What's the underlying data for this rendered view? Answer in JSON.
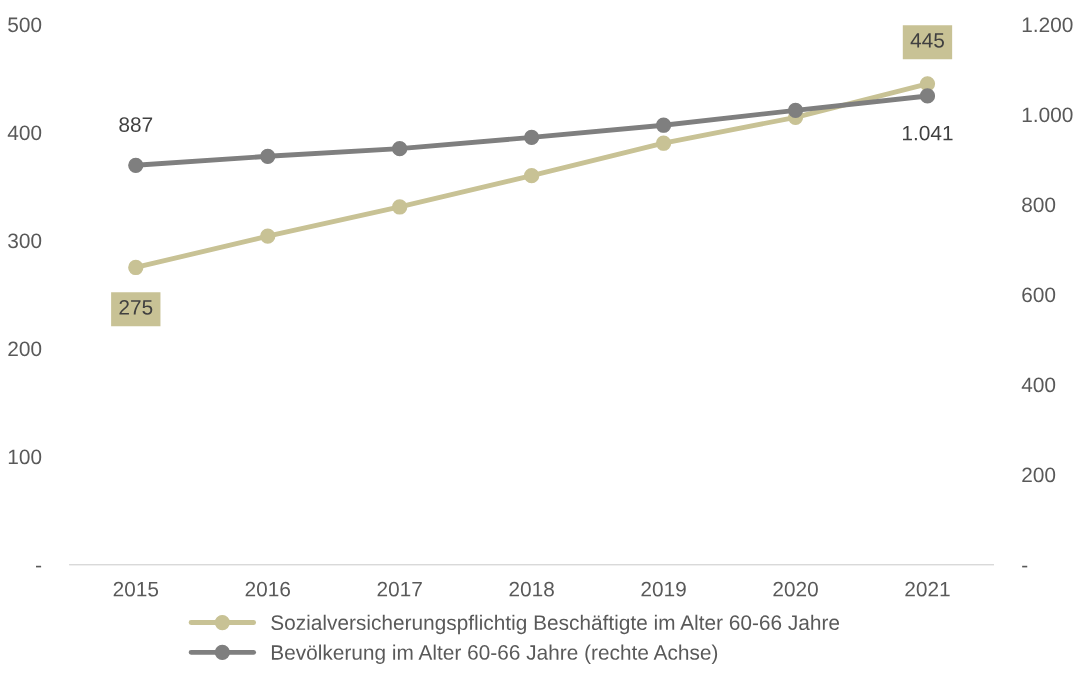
{
  "chart_data": {
    "type": "line",
    "categories": [
      "2015",
      "2016",
      "2017",
      "2018",
      "2019",
      "2020",
      "2021"
    ],
    "series": [
      {
        "name": "Sozialversicherungspflichtig Beschäftigte im Alter 60-66 Jahre",
        "color": "#c8c295",
        "values": [
          275,
          304,
          331,
          360,
          390,
          414,
          445
        ],
        "value_labels": [
          "275",
          null,
          null,
          null,
          null,
          null,
          "445"
        ]
      },
      {
        "name": "Bevölkerung im Alter 60-66 Jahre (rechte Achse)",
        "color": "#7f7f7f",
        "axis": "y2",
        "values": [
          887,
          907,
          924,
          949,
          976,
          1009,
          1041
        ],
        "value_labels": [
          "887",
          null,
          null,
          null,
          null,
          null,
          "1.041"
        ]
      }
    ],
    "ylim": [
      0,
      500
    ],
    "yticks": [
      {
        "value": 0,
        "label": "-"
      },
      100,
      200,
      300,
      400,
      500
    ],
    "y2lim": [
      0,
      1200
    ],
    "y2ticks": [
      {
        "value": 0,
        "label": "-"
      },
      200,
      400,
      600,
      800,
      {
        "value": 1000,
        "label": "1.000"
      },
      {
        "value": 1200,
        "label": "1.200"
      }
    ],
    "grid": false,
    "legend": "bottom",
    "marker": "circle",
    "line_style": "solid"
  }
}
